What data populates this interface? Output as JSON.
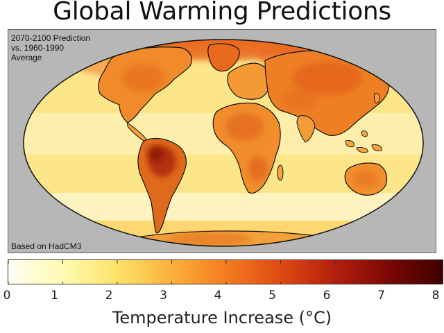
{
  "title": "Global Warming Predictions",
  "annotation_top": [
    "2070-2100 Prediction",
    "vs. 1960-1990",
    "Average"
  ],
  "annotation_bottom": "Based on HadCM3",
  "colorbar": {
    "ticks": [
      "0",
      "1",
      "2",
      "3",
      "4",
      "5",
      "6",
      "7",
      "8"
    ],
    "min": 0,
    "max": 8,
    "label": "Temperature Increase (°C)",
    "colors": [
      "#fffef6",
      "#fffab0",
      "#fde36a",
      "#fbb03b",
      "#f47c20",
      "#de4a13",
      "#b31f0c",
      "#7a0705",
      "#3d0000"
    ]
  },
  "colors": {
    "map_background": "#b7b7b7",
    "coastline": "#111111"
  }
}
